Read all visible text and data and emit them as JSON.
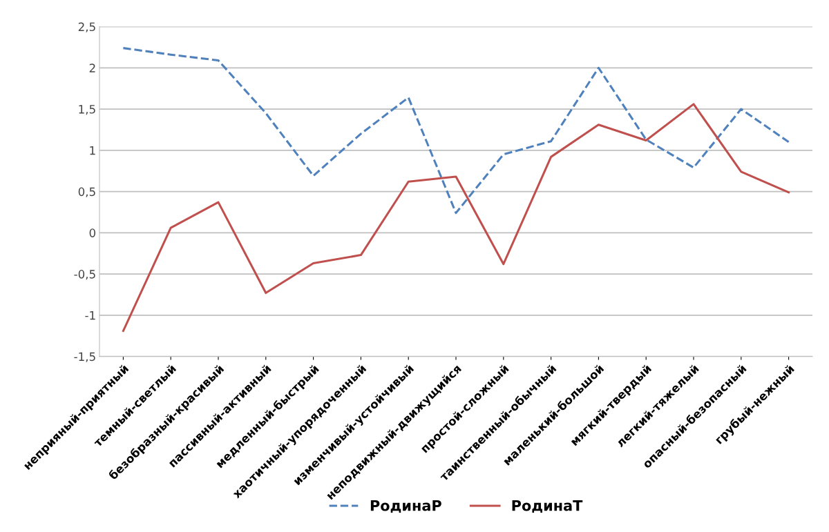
{
  "chart_data": {
    "type": "line",
    "categories": [
      "неприяный-приятный",
      "темный-светлый",
      "безобразный-красивый",
      "пассивный-активный",
      "медленный-быстрый",
      "хаотичный-упорядоченный",
      "изменчивый-устойчивый",
      "неподвижный-движущийся",
      "простой-сложный",
      "таинственный-обычный",
      "маленький-большой",
      "мягкий-твердый",
      "легкий-тяжелый",
      "опасный-безопасный",
      "грубый-нежный"
    ],
    "series": [
      {
        "name": "РодинаР",
        "color": "#4f81bd",
        "line_style": "dashed",
        "values": [
          2.24,
          2.16,
          2.09,
          1.45,
          0.69,
          1.2,
          1.64,
          0.24,
          0.95,
          1.11,
          2.0,
          1.13,
          0.79,
          1.5,
          1.1
        ]
      },
      {
        "name": "РодинаТ",
        "color": "#c0504d",
        "line_style": "solid",
        "values": [
          -1.19,
          0.06,
          0.37,
          -0.73,
          -0.37,
          -0.27,
          0.62,
          0.68,
          -0.38,
          0.92,
          1.31,
          1.12,
          1.56,
          0.74,
          0.49
        ]
      }
    ],
    "ylim": [
      -1.5,
      2.5
    ],
    "yticks": [
      {
        "value": -1.5,
        "label": "-1,5"
      },
      {
        "value": -1,
        "label": "-1"
      },
      {
        "value": -0.5,
        "label": "-0,5"
      },
      0,
      {
        "value": 0.5,
        "label": "0,5"
      },
      1,
      {
        "value": 1.5,
        "label": "1,5"
      },
      2,
      {
        "value": 2.5,
        "label": "2,5"
      }
    ],
    "grid": "y",
    "legend": "bottom",
    "marker": "none"
  }
}
